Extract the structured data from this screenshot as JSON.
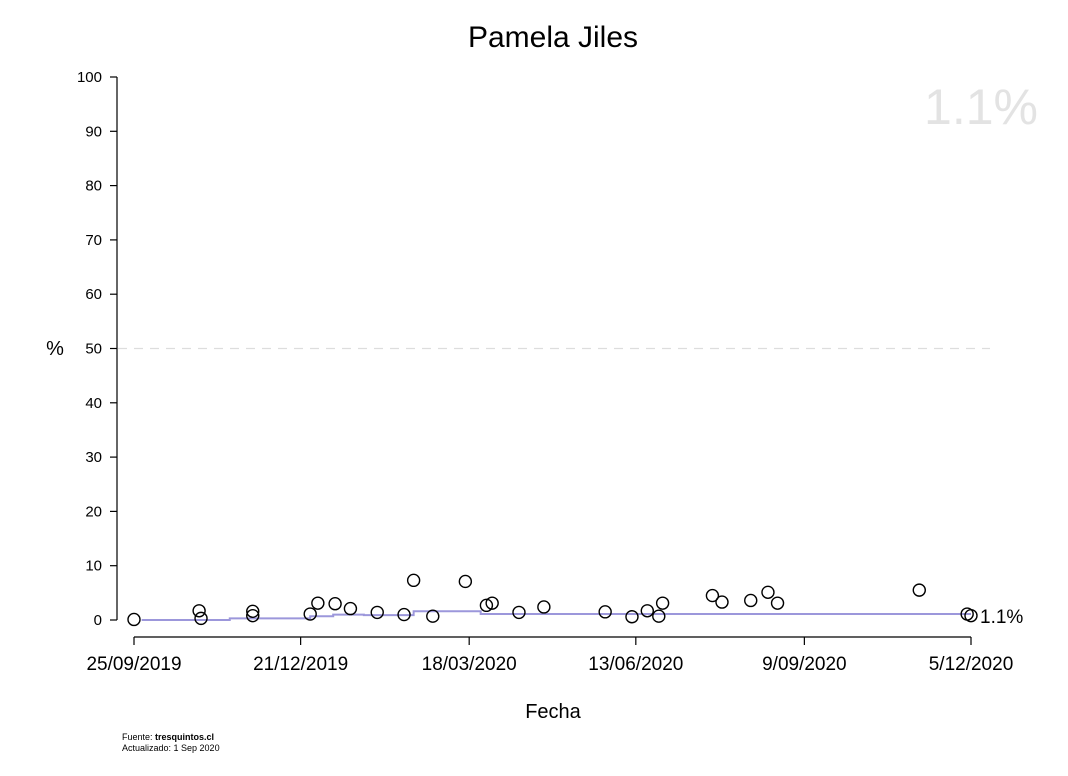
{
  "chart_data": {
    "type": "scatter",
    "title": "Pamela Jiles",
    "xlabel": "Fecha",
    "ylabel": "%",
    "ylim": [
      0,
      100
    ],
    "yticks": [
      0,
      10,
      20,
      30,
      40,
      50,
      60,
      70,
      80,
      90,
      100
    ],
    "xlim": [
      "2019-09-25",
      "2020-12-05"
    ],
    "xticks": [
      {
        "date": "2019-09-25",
        "label": "25/09/2019"
      },
      {
        "date": "2019-12-21",
        "label": "21/12/2019"
      },
      {
        "date": "2020-03-18",
        "label": "18/03/2020"
      },
      {
        "date": "2020-06-13",
        "label": "13/06/2020"
      },
      {
        "date": "2020-09-09",
        "label": "9/09/2020"
      },
      {
        "date": "2020-12-05",
        "label": "5/12/2020"
      }
    ],
    "reference_line": {
      "y": 50,
      "style": "dashed",
      "color": "#dddddd"
    },
    "current_value_label": "1.1%",
    "end_label": "1.1%",
    "trend_color": "#9c97db",
    "point_color": "#000000",
    "points": [
      {
        "x": "2019-09-25",
        "y": 0.1
      },
      {
        "x": "2019-10-29",
        "y": 1.7
      },
      {
        "x": "2019-10-30",
        "y": 0.3
      },
      {
        "x": "2019-11-26",
        "y": 1.6
      },
      {
        "x": "2019-11-26",
        "y": 0.8
      },
      {
        "x": "2019-12-26",
        "y": 1.1
      },
      {
        "x": "2019-12-30",
        "y": 3.1
      },
      {
        "x": "2020-01-08",
        "y": 3.0
      },
      {
        "x": "2020-01-16",
        "y": 2.1
      },
      {
        "x": "2020-01-30",
        "y": 1.4
      },
      {
        "x": "2020-02-13",
        "y": 1.0
      },
      {
        "x": "2020-02-18",
        "y": 7.3
      },
      {
        "x": "2020-02-28",
        "y": 0.7
      },
      {
        "x": "2020-03-16",
        "y": 7.1
      },
      {
        "x": "2020-03-27",
        "y": 2.7
      },
      {
        "x": "2020-03-30",
        "y": 3.1
      },
      {
        "x": "2020-04-13",
        "y": 1.4
      },
      {
        "x": "2020-04-26",
        "y": 2.4
      },
      {
        "x": "2020-05-28",
        "y": 1.5
      },
      {
        "x": "2020-06-11",
        "y": 0.6
      },
      {
        "x": "2020-06-19",
        "y": 1.7
      },
      {
        "x": "2020-06-25",
        "y": 0.7
      },
      {
        "x": "2020-06-27",
        "y": 3.1
      },
      {
        "x": "2020-07-23",
        "y": 4.5
      },
      {
        "x": "2020-07-28",
        "y": 3.3
      },
      {
        "x": "2020-08-12",
        "y": 3.6
      },
      {
        "x": "2020-08-21",
        "y": 5.1
      },
      {
        "x": "2020-08-26",
        "y": 3.1
      },
      {
        "x": "2020-11-08",
        "y": 5.5
      },
      {
        "x": "2020-12-03",
        "y": 1.1
      },
      {
        "x": "2020-12-05",
        "y": 0.8
      }
    ],
    "trend_steps": [
      {
        "x": "2019-09-29",
        "y": 0.0
      },
      {
        "x": "2019-11-14",
        "y": 0.3
      },
      {
        "x": "2019-12-26",
        "y": 0.7
      },
      {
        "x": "2020-01-07",
        "y": 1.0
      },
      {
        "x": "2020-01-23",
        "y": 0.9
      },
      {
        "x": "2020-02-18",
        "y": 1.6
      },
      {
        "x": "2020-03-24",
        "y": 1.1
      },
      {
        "x": "2020-12-05",
        "y": 1.1
      }
    ]
  },
  "footer": {
    "source_prefix": "Fuente: ",
    "source_name": "tresquintos.cl",
    "updated": "Actualizado: 1 Sep 2020"
  }
}
